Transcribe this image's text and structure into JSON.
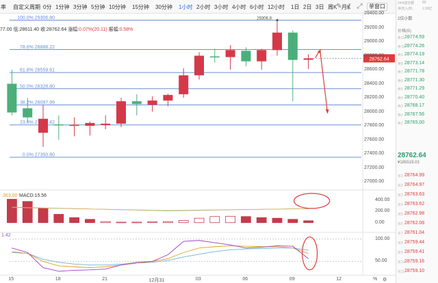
{
  "toolbar": {
    "leading": "率",
    "custom_period": "自定义周期",
    "intervals": [
      "0分",
      "1分钟",
      "3分钟",
      "5分钟",
      "10分钟",
      "15分钟",
      "30分钟",
      "1小时",
      "2小时",
      "3小时",
      "4小时",
      "6小时",
      "12小时",
      "1日",
      "2日",
      "3日",
      "周K",
      "月K"
    ],
    "active_interval": "1小时",
    "single_window": "单窗口",
    "icons": [
      "draw-icon",
      "indicator-icon",
      "fullscreen-icon"
    ]
  },
  "info": {
    "open_fragment": "77.00",
    "low_label": "低:",
    "low": "28611.40",
    "close_label": "收:",
    "close": "28762.64",
    "change_label": "涨幅:",
    "change": "0.07%(20.11)",
    "amplitude_label": "振幅:",
    "amplitude": "0.58%"
  },
  "right_panel": {
    "top_line_1": "24H成交额",
    "top_line_1b": "80",
    "top_line_2": "净流入(B)",
    "top_line_2b": "1.58亿",
    "header": "价格(B)",
    "asks": [
      "28774.59",
      "28774.26",
      "28774.19",
      "28773.14",
      "28771.78",
      "28771.30",
      "28771.29",
      "28770.40",
      "28768.17",
      "28767.56",
      "28765.00"
    ],
    "ask_prefix": "卖",
    "last_price": "28762.64",
    "last_price_sub": "¥185519.03",
    "bids": [
      "28764.99",
      "28764.97",
      "28763.63",
      "28763.62",
      "28762.98",
      "28762.08",
      "28761.04",
      "28759.44",
      "28759.41",
      "28759.16",
      "28759.10"
    ],
    "bid_prefix": "买",
    "depth_select": "2位小数"
  },
  "fib": [
    {
      "label": "100.0% 29306.80",
      "price": 29306.8
    },
    {
      "label": "78.6% 28888.22",
      "price": 28888.22
    },
    {
      "label": "61.8% 28559.61",
      "price": 28559.61
    },
    {
      "label": "50.0% 28328.80",
      "price": 28328.8
    },
    {
      "label": "38.2% 28097.99",
      "price": 28097.99
    },
    {
      "label": "23.6% 27812.42",
      "price": 27812.42
    },
    {
      "label": "0.0% 27350.80",
      "price": 27350.8
    }
  ],
  "peak_label": "29306.8",
  "current_price_tag": "28762.64",
  "chart_data": {
    "type": "candlestick",
    "ylim": [
      27000,
      29400
    ],
    "yticks": [
      29400,
      29200,
      29000,
      28800,
      28600,
      28400,
      28200,
      28000,
      27800,
      27600,
      27400,
      27200,
      27000
    ],
    "ytick_labels": [
      "29400.00",
      "29200.00",
      "29000.00",
      "28800.00",
      "28600.00",
      "28400.00",
      "28200.00",
      "28000.00",
      "27800.00",
      "27600.00",
      "27400.00",
      "27200.00",
      "27000.00"
    ],
    "xticks": [
      {
        "label": "15",
        "at": 0.5
      },
      {
        "label": "18",
        "at": 3.5
      },
      {
        "label": "21",
        "at": 6.5
      },
      {
        "label": "12月31",
        "at": 9.5
      },
      {
        "label": "03",
        "at": 12.5
      },
      {
        "label": "06",
        "at": 15.5
      },
      {
        "label": "09",
        "at": 18.5
      },
      {
        "label": "12",
        "at": 21.5
      }
    ],
    "candles": [
      {
        "o": 28400,
        "h": 28600,
        "l": 27950,
        "c": 27990
      },
      {
        "o": 28050,
        "h": 28200,
        "l": 27850,
        "c": 27920
      },
      {
        "o": 27700,
        "h": 28100,
        "l": 27500,
        "c": 27900
      },
      {
        "o": 27820,
        "h": 27950,
        "l": 27600,
        "c": 27810
      },
      {
        "o": 27800,
        "h": 27920,
        "l": 27650,
        "c": 27815
      },
      {
        "o": 27800,
        "h": 27860,
        "l": 27660,
        "c": 27840
      },
      {
        "o": 27810,
        "h": 27950,
        "l": 27750,
        "c": 27830
      },
      {
        "o": 27830,
        "h": 28200,
        "l": 27780,
        "c": 28150
      },
      {
        "o": 28150,
        "h": 28250,
        "l": 27950,
        "c": 28110
      },
      {
        "o": 28100,
        "h": 28220,
        "l": 28000,
        "c": 28160
      },
      {
        "o": 28160,
        "h": 28260,
        "l": 28080,
        "c": 28240
      },
      {
        "o": 28250,
        "h": 28620,
        "l": 28200,
        "c": 28520
      },
      {
        "o": 28520,
        "h": 28850,
        "l": 28460,
        "c": 28800
      },
      {
        "o": 28790,
        "h": 28900,
        "l": 28700,
        "c": 28780
      },
      {
        "o": 28780,
        "h": 28950,
        "l": 28600,
        "c": 28880
      },
      {
        "o": 28870,
        "h": 28920,
        "l": 28650,
        "c": 28720
      },
      {
        "o": 28720,
        "h": 28900,
        "l": 28600,
        "c": 28880
      },
      {
        "o": 28880,
        "h": 29306.8,
        "l": 28800,
        "c": 29130
      },
      {
        "o": 29130,
        "h": 29160,
        "l": 28150,
        "c": 28740
      },
      {
        "o": 28742,
        "h": 28820,
        "l": 28611.4,
        "c": 28762.64
      }
    ],
    "macd": {
      "label": ".363.00",
      "macd_label": "MACD:",
      "macd_value": "15.56",
      "ylim": [
        -150,
        560
      ],
      "yticks": [
        400,
        200,
        0
      ],
      "ytick_labels": [
        "400.00",
        "200.00",
        "0.00"
      ],
      "hist": [
        420,
        380,
        260,
        150,
        90,
        60,
        20,
        10,
        10,
        15,
        20,
        40,
        80,
        110,
        115,
        110,
        90,
        80,
        60,
        35
      ]
    },
    "kdj": {
      "label": "1.42",
      "ylim": [
        20,
        115
      ],
      "yticks": [
        100,
        50
      ],
      "ytick_labels": [
        "100.00",
        "50.00"
      ],
      "k": [
        80,
        70,
        36,
        28,
        30,
        31,
        33,
        42,
        48,
        50,
        65,
        95,
        97,
        92,
        87,
        80,
        82,
        85,
        84,
        56
      ],
      "d": [
        72,
        68,
        50,
        40,
        38,
        36,
        38,
        42,
        46,
        50,
        56,
        70,
        80,
        83,
        85,
        84,
        83,
        83,
        80,
        68
      ],
      "j": [
        70,
        68,
        55,
        48,
        44,
        42,
        42,
        44,
        46,
        48,
        52,
        60,
        66,
        72,
        76,
        78,
        79,
        80,
        80,
        75
      ]
    }
  }
}
